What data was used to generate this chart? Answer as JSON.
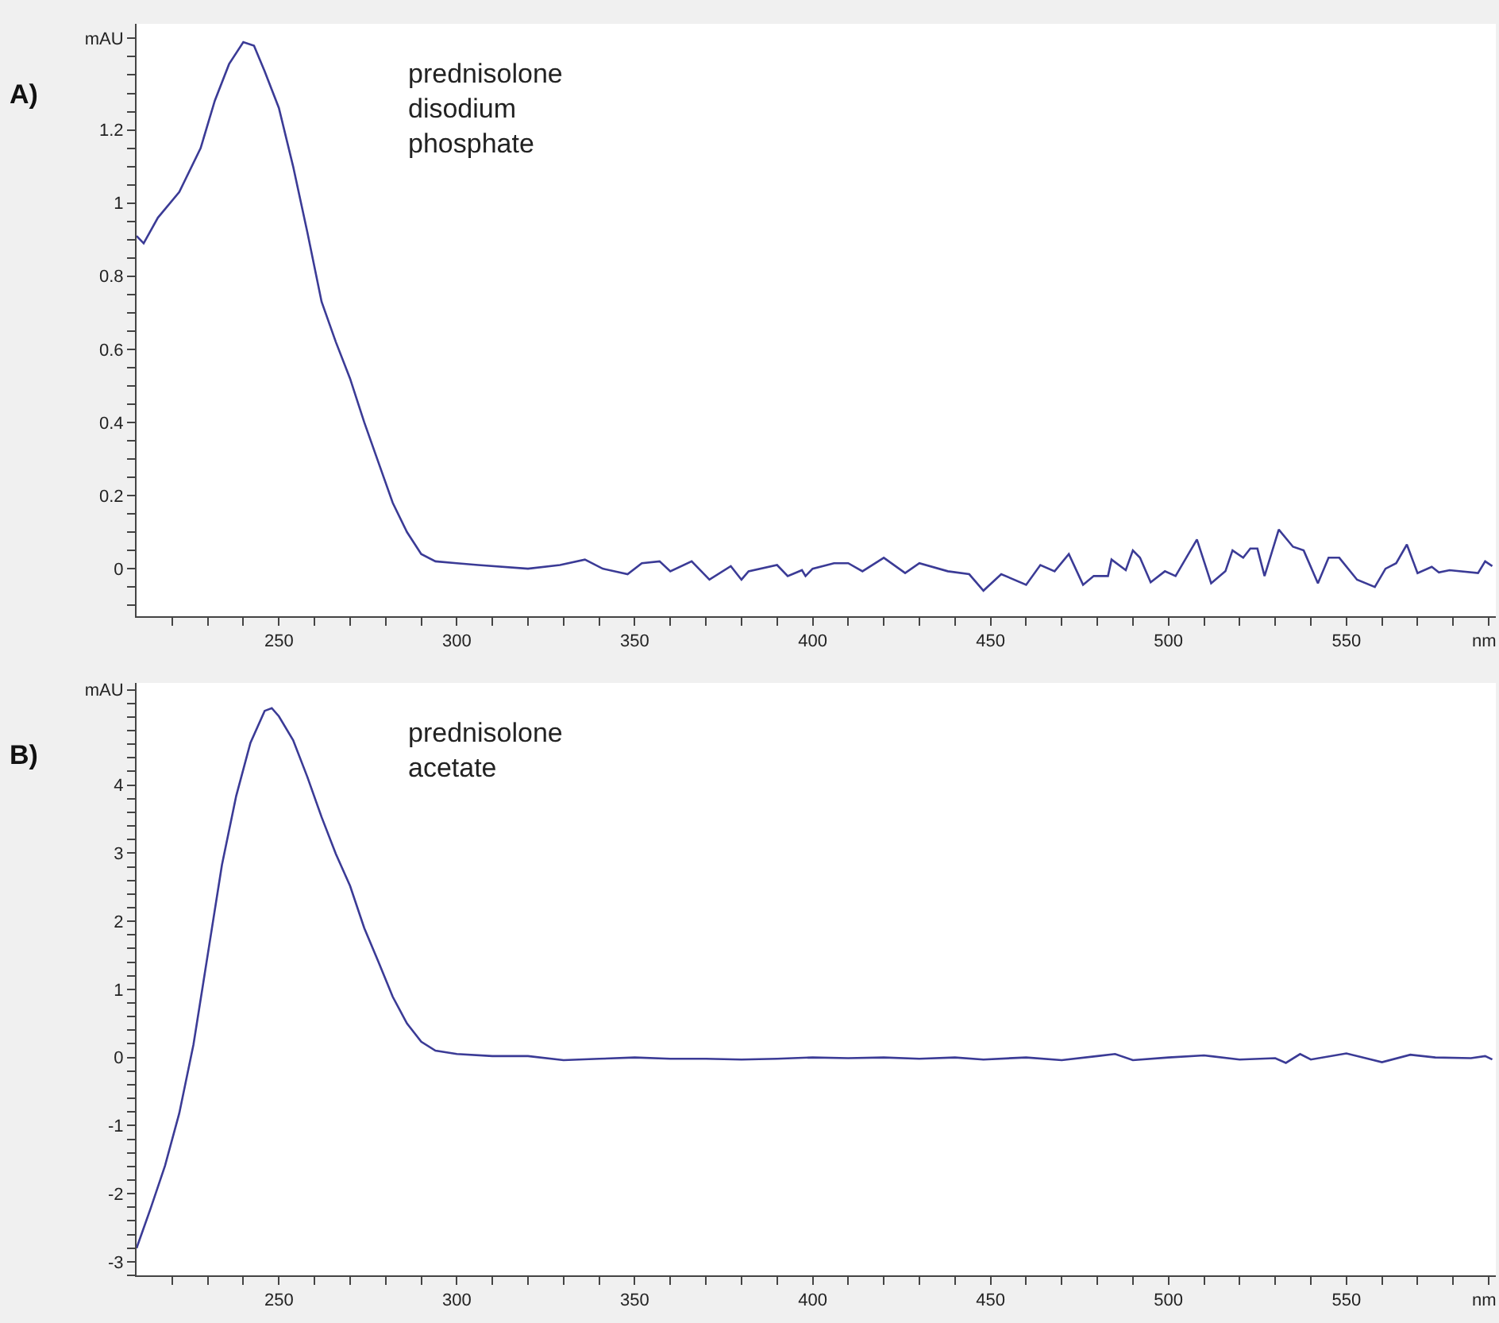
{
  "chart_data": [
    {
      "type": "line",
      "title": "A)",
      "xlabel": "nm",
      "annotations": [
        "prednisolone\ndisodium\nphosphate"
      ],
      "xlim": [
        210,
        592
      ],
      "ylim": [
        -0.13,
        1.49
      ],
      "xticks": [
        {
          "value": 220,
          "label": null
        },
        {
          "value": 230,
          "label": null
        },
        {
          "value": 240,
          "label": null
        },
        250,
        {
          "value": 260,
          "label": null
        },
        {
          "value": 270,
          "label": null
        },
        {
          "value": 280,
          "label": null
        },
        {
          "value": 290,
          "label": null
        },
        300,
        {
          "value": 310,
          "label": null
        },
        {
          "value": 320,
          "label": null
        },
        {
          "value": 330,
          "label": null
        },
        {
          "value": 340,
          "label": null
        },
        350,
        {
          "value": 360,
          "label": null
        },
        {
          "value": 370,
          "label": null
        },
        {
          "value": 380,
          "label": null
        },
        {
          "value": 390,
          "label": null
        },
        400,
        {
          "value": 410,
          "label": null
        },
        {
          "value": 420,
          "label": null
        },
        {
          "value": 430,
          "label": null
        },
        {
          "value": 440,
          "label": null
        },
        450,
        {
          "value": 460,
          "label": null
        },
        {
          "value": 470,
          "label": null
        },
        {
          "value": 480,
          "label": null
        },
        {
          "value": 490,
          "label": null
        },
        500,
        {
          "value": 510,
          "label": null
        },
        {
          "value": 520,
          "label": null
        },
        {
          "value": 530,
          "label": null
        },
        {
          "value": 540,
          "label": null
        },
        550,
        {
          "value": 560,
          "label": null
        },
        {
          "value": 570,
          "label": null
        },
        {
          "value": 580,
          "label": null
        },
        {
          "value": 590,
          "label": null
        }
      ],
      "yticks": [
        {
          "value": -0.1,
          "label": null
        },
        {
          "value": -0.05,
          "label": null
        },
        0,
        {
          "value": 0.05,
          "label": null
        },
        {
          "value": 0.1,
          "label": null
        },
        {
          "value": 0.15,
          "label": null
        },
        0.2,
        {
          "value": 0.25,
          "label": null
        },
        {
          "value": 0.3,
          "label": null
        },
        {
          "value": 0.35,
          "label": null
        },
        0.4,
        {
          "value": 0.45,
          "label": null
        },
        {
          "value": 0.5,
          "label": null
        },
        {
          "value": 0.55,
          "label": null
        },
        0.6,
        {
          "value": 0.65,
          "label": null
        },
        {
          "value": 0.7,
          "label": null
        },
        {
          "value": 0.75,
          "label": null
        },
        0.8,
        {
          "value": 0.85,
          "label": null
        },
        {
          "value": 0.9,
          "label": null
        },
        {
          "value": 0.95,
          "label": null
        },
        1,
        {
          "value": 1.05,
          "label": null
        },
        {
          "value": 1.1,
          "label": null
        },
        {
          "value": 1.15,
          "label": null
        },
        1.2,
        {
          "value": 1.25,
          "label": null
        },
        {
          "value": 1.3,
          "label": null
        },
        {
          "value": 1.35,
          "label": null
        },
        {
          "value": 1.4,
          "label": null
        },
        {
          "value": 1.45,
          "label": "mAU"
        }
      ],
      "series": [
        {
          "color": "#3b3b96",
          "x": [
            210,
            212,
            216,
            222,
            228,
            232,
            236,
            240,
            243,
            246,
            250,
            254,
            258,
            262,
            266,
            270,
            274,
            278,
            282,
            286,
            290,
            294,
            300,
            306,
            320,
            329,
            336,
            341,
            348,
            352,
            357,
            360,
            366,
            371,
            377,
            380,
            382,
            390,
            393,
            397,
            398,
            400,
            406,
            410,
            414,
            420,
            426,
            430,
            438,
            444,
            448,
            453,
            460,
            464,
            468,
            472,
            476,
            479,
            483,
            484,
            488,
            490,
            492,
            495,
            499,
            502,
            508,
            512,
            516,
            518,
            521,
            523,
            525,
            527,
            531,
            535,
            538,
            542,
            545,
            548,
            553,
            558,
            561,
            564,
            567,
            570,
            574,
            576,
            579,
            587,
            589,
            591
          ],
          "values": [
            0.91,
            0.89,
            0.96,
            1.03,
            1.15,
            1.28,
            1.38,
            1.44,
            1.43,
            1.36,
            1.26,
            1.1,
            0.92,
            0.73,
            0.62,
            0.52,
            0.4,
            0.29,
            0.18,
            0.1,
            0.04,
            0.02,
            0.015,
            0.01,
            0.0,
            0.01,
            0.025,
            0.0,
            -0.015,
            0.015,
            0.02,
            -0.007,
            0.02,
            -0.03,
            0.007,
            -0.03,
            -0.007,
            0.01,
            -0.02,
            -0.004,
            -0.02,
            0.0,
            0.015,
            0.015,
            -0.007,
            0.03,
            -0.012,
            0.015,
            -0.007,
            -0.015,
            -0.06,
            -0.015,
            -0.044,
            0.01,
            -0.007,
            0.04,
            -0.044,
            -0.02,
            -0.02,
            0.025,
            -0.004,
            0.05,
            0.03,
            -0.037,
            -0.007,
            -0.02,
            0.08,
            -0.04,
            -0.007,
            0.05,
            0.03,
            0.055,
            0.055,
            -0.02,
            0.107,
            0.06,
            0.05,
            -0.04,
            0.03,
            0.03,
            -0.03,
            -0.05,
            0.0,
            0.015,
            0.066,
            -0.012,
            0.005,
            -0.01,
            -0.004,
            -0.012,
            0.02,
            0.007
          ]
        }
      ]
    },
    {
      "type": "line",
      "title": "B)",
      "xlabel": "nm",
      "annotations": [
        "prednisolone\nacetate"
      ],
      "xlim": [
        210,
        592
      ],
      "ylim": [
        -3.2,
        5.5
      ],
      "xticks": [
        {
          "value": 220,
          "label": null
        },
        {
          "value": 230,
          "label": null
        },
        {
          "value": 240,
          "label": null
        },
        250,
        {
          "value": 260,
          "label": null
        },
        {
          "value": 270,
          "label": null
        },
        {
          "value": 280,
          "label": null
        },
        {
          "value": 290,
          "label": null
        },
        300,
        {
          "value": 310,
          "label": null
        },
        {
          "value": 320,
          "label": null
        },
        {
          "value": 330,
          "label": null
        },
        {
          "value": 340,
          "label": null
        },
        350,
        {
          "value": 360,
          "label": null
        },
        {
          "value": 370,
          "label": null
        },
        {
          "value": 380,
          "label": null
        },
        {
          "value": 390,
          "label": null
        },
        400,
        {
          "value": 410,
          "label": null
        },
        {
          "value": 420,
          "label": null
        },
        {
          "value": 430,
          "label": null
        },
        {
          "value": 440,
          "label": null
        },
        450,
        {
          "value": 460,
          "label": null
        },
        {
          "value": 470,
          "label": null
        },
        {
          "value": 480,
          "label": null
        },
        {
          "value": 490,
          "label": null
        },
        500,
        {
          "value": 510,
          "label": null
        },
        {
          "value": 520,
          "label": null
        },
        {
          "value": 530,
          "label": null
        },
        {
          "value": 540,
          "label": null
        },
        550,
        {
          "value": 560,
          "label": null
        },
        {
          "value": 570,
          "label": null
        },
        {
          "value": 580,
          "label": null
        },
        {
          "value": 590,
          "label": null
        }
      ],
      "yticks": [
        {
          "value": -3.2,
          "label": null
        },
        -3,
        {
          "value": -2.8,
          "label": null
        },
        {
          "value": -2.6,
          "label": null
        },
        {
          "value": -2.4,
          "label": null
        },
        {
          "value": -2.2,
          "label": null
        },
        -2,
        {
          "value": -1.8,
          "label": null
        },
        {
          "value": -1.6,
          "label": null
        },
        {
          "value": -1.4,
          "label": null
        },
        {
          "value": -1.2,
          "label": null
        },
        -1,
        {
          "value": -0.8,
          "label": null
        },
        {
          "value": -0.6,
          "label": null
        },
        {
          "value": -0.4,
          "label": null
        },
        {
          "value": -0.2,
          "label": null
        },
        0,
        {
          "value": 0.2,
          "label": null
        },
        {
          "value": 0.4,
          "label": null
        },
        {
          "value": 0.6,
          "label": null
        },
        {
          "value": 0.8,
          "label": null
        },
        1,
        {
          "value": 1.2,
          "label": null
        },
        {
          "value": 1.4,
          "label": null
        },
        {
          "value": 1.6,
          "label": null
        },
        {
          "value": 1.8,
          "label": null
        },
        2,
        {
          "value": 2.2,
          "label": null
        },
        {
          "value": 2.4,
          "label": null
        },
        {
          "value": 2.6,
          "label": null
        },
        {
          "value": 2.8,
          "label": null
        },
        3,
        {
          "value": 3.2,
          "label": null
        },
        {
          "value": 3.4,
          "label": null
        },
        {
          "value": 3.6,
          "label": null
        },
        {
          "value": 3.8,
          "label": null
        },
        4,
        {
          "value": 4.2,
          "label": null
        },
        {
          "value": 4.4,
          "label": null
        },
        {
          "value": 4.6,
          "label": null
        },
        {
          "value": 4.8,
          "label": null
        },
        {
          "value": 5.0,
          "label": null
        },
        {
          "value": 5.2,
          "label": null
        },
        {
          "value": 5.4,
          "label": "mAU"
        }
      ],
      "series": [
        {
          "color": "#3b3b96",
          "x": [
            210,
            214,
            218,
            222,
            226,
            230,
            234,
            238,
            242,
            246,
            248,
            250,
            254,
            258,
            262,
            266,
            270,
            274,
            278,
            282,
            286,
            290,
            294,
            300,
            310,
            320,
            330,
            340,
            350,
            360,
            370,
            380,
            390,
            400,
            410,
            420,
            430,
            440,
            448,
            460,
            470,
            480,
            485,
            490,
            500,
            510,
            520,
            530,
            533,
            537,
            540,
            550,
            557,
            560,
            568,
            575,
            585,
            589,
            591
          ],
          "values": [
            -2.8,
            -2.21,
            -1.59,
            -0.82,
            0.19,
            1.51,
            2.83,
            3.84,
            4.62,
            5.09,
            5.13,
            5.01,
            4.66,
            4.12,
            3.53,
            2.99,
            2.52,
            1.9,
            1.4,
            0.89,
            0.5,
            0.23,
            0.1,
            0.05,
            0.02,
            0.02,
            -0.04,
            -0.02,
            0.0,
            -0.02,
            -0.02,
            -0.03,
            -0.02,
            0.0,
            -0.01,
            0.0,
            -0.02,
            0.0,
            -0.03,
            0.0,
            -0.04,
            0.02,
            0.05,
            -0.04,
            0.0,
            0.03,
            -0.03,
            -0.01,
            -0.08,
            0.05,
            -0.03,
            0.06,
            -0.03,
            -0.07,
            0.04,
            0.0,
            -0.01,
            0.02,
            -0.03
          ]
        }
      ]
    }
  ]
}
